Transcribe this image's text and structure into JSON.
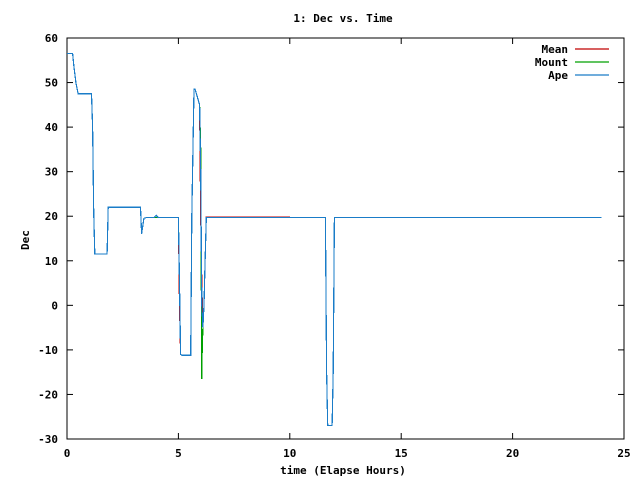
{
  "chart_data": {
    "type": "line",
    "title": "1: Dec vs. Time",
    "xlabel": "time (Elapse Hours)",
    "ylabel": "Dec",
    "xlim": [
      0,
      25
    ],
    "ylim": [
      -30,
      60
    ],
    "xticks": [
      0,
      5,
      10,
      15,
      20,
      25
    ],
    "yticks": [
      -30,
      -20,
      -10,
      0,
      10,
      20,
      30,
      40,
      50,
      60
    ],
    "legend_position": "top-right",
    "grid": false,
    "series": [
      {
        "name": "Mean",
        "color": "#c00000",
        "x": [
          0,
          0.25,
          0.3,
          0.4,
          0.5,
          1.1,
          1.15,
          1.2,
          1.25,
          1.3,
          1.8,
          1.85,
          3.3,
          3.35,
          3.45,
          3.55,
          3.6,
          5.0,
          5.05,
          5.1,
          5.15,
          5.55,
          5.6,
          5.7,
          5.75,
          5.95,
          6.0,
          6.05,
          6.1,
          6.15,
          6.2,
          6.25,
          10.0
        ],
        "y": [
          56.5,
          56.5,
          54,
          50,
          47.5,
          47.5,
          40,
          21,
          11.5,
          11.5,
          11.5,
          22,
          22,
          16,
          19.5,
          19.7,
          19.7,
          19.7,
          0,
          -11,
          -11.2,
          -11.2,
          20,
          48.5,
          48.5,
          45,
          20,
          5,
          -5,
          0,
          10,
          19.8,
          19.8
        ]
      },
      {
        "name": "Mount",
        "color": "#00a000",
        "x": [
          0,
          0.25,
          0.3,
          0.4,
          0.5,
          1.1,
          1.15,
          1.2,
          1.25,
          1.3,
          1.8,
          1.85,
          3.3,
          3.35,
          3.45,
          3.55,
          3.6,
          5.0,
          5.02,
          5.05,
          5.1,
          5.15,
          5.55,
          5.6,
          5.7,
          5.75,
          5.95,
          6.0,
          6.02,
          6.05,
          6.07,
          6.1,
          6.15,
          6.2,
          6.25,
          11.6,
          11.65,
          11.7,
          11.9,
          11.95,
          12.0,
          24
        ],
        "y": [
          56.5,
          56.5,
          54,
          50,
          47.5,
          47.5,
          40,
          21,
          11.5,
          11.5,
          11.5,
          22,
          22,
          16,
          19.5,
          19.7,
          19.7,
          19.7,
          14.5,
          5,
          -11,
          -11.2,
          -11.2,
          20,
          48.5,
          48.5,
          45,
          35,
          15,
          -16.5,
          -10,
          -5,
          0,
          10,
          19.7,
          19.7,
          -15,
          -27,
          -27,
          -15,
          19.7,
          19.7
        ]
      },
      {
        "name": "Ape",
        "color": "#1a7cc8",
        "x": [
          0,
          0.25,
          0.3,
          0.4,
          0.5,
          1.1,
          1.15,
          1.2,
          1.25,
          1.3,
          1.8,
          1.85,
          3.3,
          3.35,
          3.45,
          3.55,
          3.6,
          3.9,
          4.0,
          4.1,
          5.0,
          5.05,
          5.1,
          5.15,
          5.55,
          5.6,
          5.7,
          5.75,
          5.95,
          6.0,
          6.05,
          6.1,
          6.15,
          6.2,
          6.25,
          11.6,
          11.65,
          11.7,
          11.9,
          11.95,
          12.0,
          24
        ],
        "y": [
          56.5,
          56.5,
          54,
          50,
          47.5,
          47.5,
          40,
          21,
          11.5,
          11.5,
          11.5,
          22,
          22,
          16,
          19.5,
          19.7,
          19.7,
          19.7,
          20.2,
          19.7,
          19.7,
          5,
          -11,
          -11.2,
          -11.2,
          20,
          48.5,
          48.5,
          45,
          30,
          0,
          -5,
          0,
          10,
          19.7,
          19.7,
          -15,
          -27,
          -27,
          -15,
          19.7,
          19.7
        ]
      }
    ]
  }
}
